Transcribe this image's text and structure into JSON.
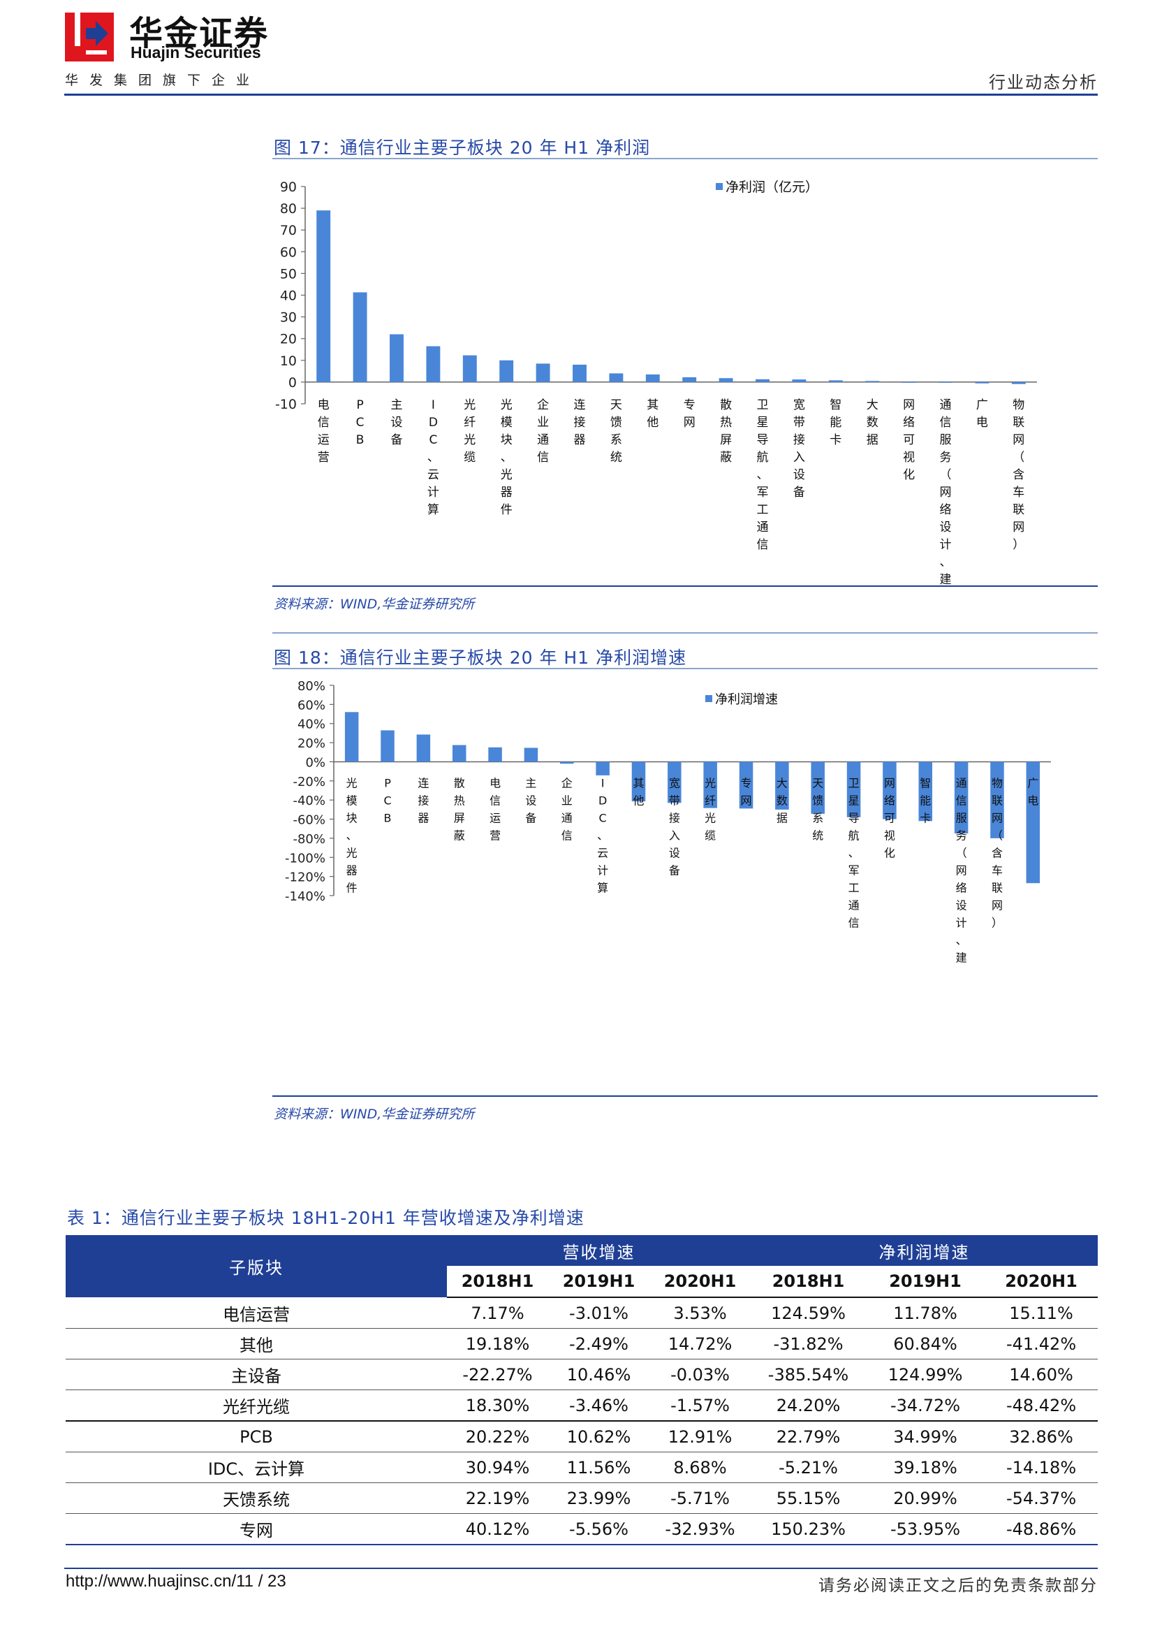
{
  "header": {
    "logo_cn": "华金证券",
    "logo_en": "Huajin Securities",
    "tagline": "华发集团旗下企业",
    "report_type": "行业动态分析",
    "brand_colors": {
      "red": "#e0161e",
      "navy": "#1f3f95"
    }
  },
  "figure17": {
    "title": "图 17：通信行业主要子板块 20 年 H1 净利润",
    "source": "资料来源：WIND,华金证券研究所",
    "chart_data": {
      "type": "bar",
      "title": "",
      "legend": "净利润（亿元）",
      "legend_position": "top-right",
      "categories": [
        "电信运营",
        "PCB",
        "主设备",
        "IDC、云计算",
        "光纤光缆",
        "光模块、光器件",
        "企业通信",
        "连接器",
        "天馈系统",
        "其他",
        "专网",
        "散热屏蔽",
        "卫星导航、军工通信",
        "宽带接入设备",
        "智能卡",
        "大数据",
        "网络可视化",
        "通信服务（网络设计、建设、维护优化）",
        "广电",
        "物联网（含车联网）"
      ],
      "values": [
        79,
        41.3,
        22,
        16.5,
        12.3,
        10,
        8.5,
        8,
        4,
        3.5,
        2.2,
        1.8,
        1.3,
        1.2,
        0.8,
        0.5,
        -0.1,
        -0.2,
        -0.6,
        -0.9
      ],
      "ylim": [
        -10,
        90
      ],
      "yticks": [
        -10,
        0,
        10,
        20,
        30,
        40,
        50,
        60,
        70,
        80,
        90
      ],
      "bar_color": "#4a86d8",
      "grid": false
    }
  },
  "figure18": {
    "title": "图 18：通信行业主要子板块 20 年 H1 净利润增速",
    "source": "资料来源：WIND,华金证券研究所",
    "chart_data": {
      "type": "bar",
      "title": "",
      "legend": "净利润增速",
      "legend_position": "top-right",
      "categories": [
        "光模块、光器件",
        "PCB",
        "连接器",
        "散热屏蔽",
        "电信运营",
        "主设备",
        "企业通信",
        "IDC、云计算",
        "其他",
        "宽带接入设备",
        "光纤光缆",
        "专网",
        "大数据",
        "天馈系统",
        "卫星导航、军工通信",
        "网络可视化",
        "智能卡",
        "通信服务（网络设计、建设、维护优化）",
        "物联网（含车联网）",
        "广电"
      ],
      "values": [
        52,
        32.9,
        28.5,
        17.5,
        15.1,
        14.6,
        -2,
        -14.2,
        -41.4,
        -43,
        -48.4,
        -48.9,
        -50,
        -54.4,
        -58,
        -60,
        -62,
        -75,
        -80,
        -127
      ],
      "ylim": [
        -140,
        80
      ],
      "yticks": [
        -140,
        -120,
        -100,
        -80,
        -60,
        -40,
        -20,
        0,
        20,
        40,
        60,
        80
      ],
      "tick_suffix": "%",
      "bar_color": "#4a86d8",
      "grid": false
    }
  },
  "table1": {
    "title": "表 1：通信行业主要子板块 18H1-20H1 年营收增速及净利增速",
    "col_sector": "子版块",
    "group_revenue": "营收增速",
    "group_profit": "净利润增速",
    "years": [
      "2018H1",
      "2019H1",
      "2020H1",
      "2018H1",
      "2019H1",
      "2020H1"
    ],
    "rows": [
      [
        "电信运营",
        "7.17%",
        "-3.01%",
        "3.53%",
        "124.59%",
        "11.78%",
        "15.11%"
      ],
      [
        "其他",
        "19.18%",
        "-2.49%",
        "14.72%",
        "-31.82%",
        "60.84%",
        "-41.42%"
      ],
      [
        "主设备",
        "-22.27%",
        "10.46%",
        "-0.03%",
        "-385.54%",
        "124.99%",
        "14.60%"
      ],
      [
        "光纤光缆",
        "18.30%",
        "-3.46%",
        "-1.57%",
        "24.20%",
        "-34.72%",
        "-48.42%"
      ],
      [
        "PCB",
        "20.22%",
        "10.62%",
        "12.91%",
        "22.79%",
        "34.99%",
        "32.86%"
      ],
      [
        "IDC、云计算",
        "30.94%",
        "11.56%",
        "8.68%",
        "-5.21%",
        "39.18%",
        "-14.18%"
      ],
      [
        "天馈系统",
        "22.19%",
        "23.99%",
        "-5.71%",
        "55.15%",
        "20.99%",
        "-54.37%"
      ],
      [
        "专网",
        "40.12%",
        "-5.56%",
        "-32.93%",
        "150.23%",
        "-53.95%",
        "-48.86%"
      ]
    ]
  },
  "footer": {
    "url": "http://www.huajinsc.cn/11 / 23",
    "disclaimer": "请务必阅读正文之后的免责条款部分"
  }
}
